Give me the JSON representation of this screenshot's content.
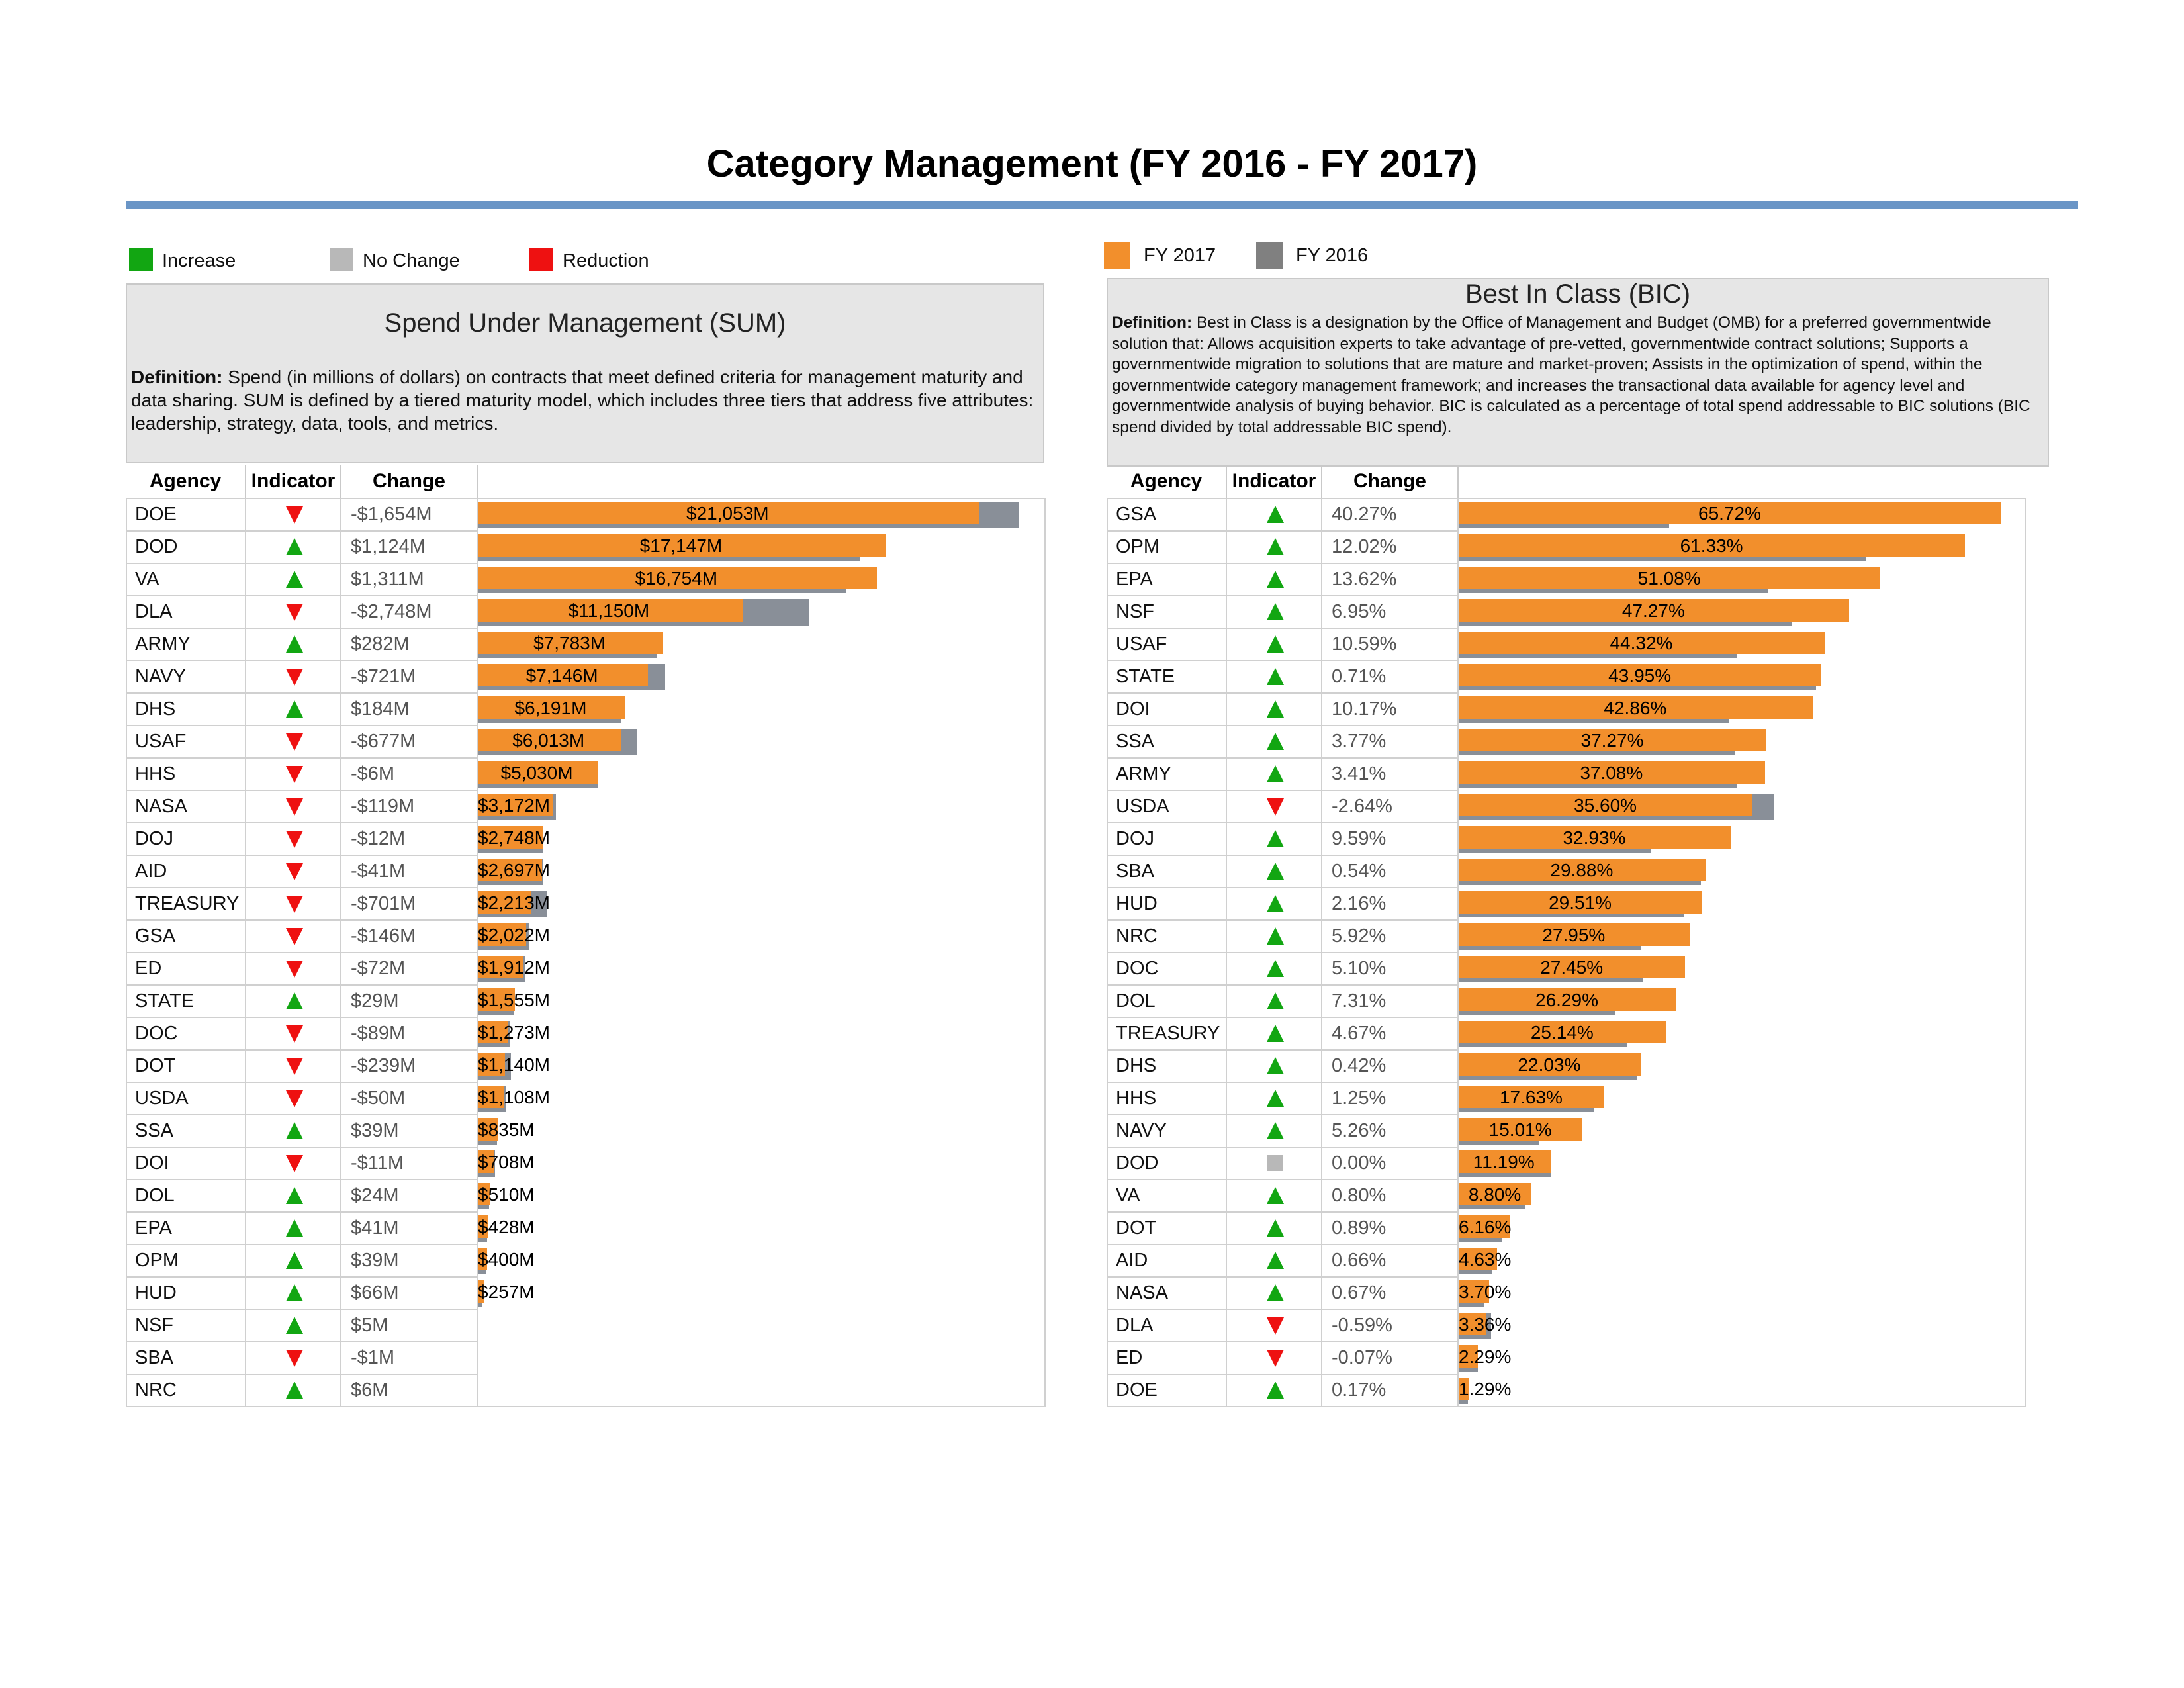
{
  "title": "Category Management (FY 2016 - FY 2017)",
  "legend_indicator": [
    {
      "label": "Increase",
      "color": "#12a612"
    },
    {
      "label": "No Change",
      "color": "#b8b8b8"
    },
    {
      "label": "Reduction",
      "color": "#ee1111"
    }
  ],
  "legend_years": [
    {
      "label": "FY 2017",
      "color": "#f28f2c"
    },
    {
      "label": "FY 2016",
      "color": "#808080"
    }
  ],
  "sum_panel": {
    "heading": "Spend Under Management (SUM)",
    "definition_label": "Definition:",
    "definition": "Spend (in millions of dollars) on contracts that meet defined criteria for management maturity and data sharing. SUM is defined by a tiered maturity model, which includes three tiers that address five attributes: leadership, strategy, data, tools, and metrics.",
    "columns": [
      "Agency",
      "Indicator",
      "Change"
    ]
  },
  "bic_panel": {
    "heading": "Best In Class (BIC)",
    "definition_label": "Definition:",
    "definition": "Best in Class is a designation by the Office of Management and Budget (OMB) for a preferred governmentwide solution that: Allows acquisition experts to take advantage of pre-vetted, governmentwide contract solutions; Supports a governmentwide migration to solutions that are mature and market-proven; Assists in the optimization of spend, within the governmentwide category management framework; and increases the transactional data available for agency level and governmentwide analysis of buying behavior. BIC is calculated as a percentage of total spend addressable to BIC solutions (BIC spend divided by total addressable BIC spend).",
    "columns": [
      "Agency",
      "Indicator",
      "Change"
    ]
  },
  "chart_data": [
    {
      "type": "bar",
      "title": "Spend Under Management (SUM)",
      "unit": "millions of dollars",
      "series": [
        {
          "name": "FY 2017"
        },
        {
          "name": "FY 2016"
        }
      ],
      "rows": [
        {
          "agency": "DOE",
          "indicator": "reduction",
          "change": "-$1,654M",
          "fy2017": 21053,
          "fy2016": 22707,
          "label": "$21,053M"
        },
        {
          "agency": "DOD",
          "indicator": "increase",
          "change": "$1,124M",
          "fy2017": 17147,
          "fy2016": 16023,
          "label": "$17,147M"
        },
        {
          "agency": "VA",
          "indicator": "increase",
          "change": "$1,311M",
          "fy2017": 16754,
          "fy2016": 15443,
          "label": "$16,754M"
        },
        {
          "agency": "DLA",
          "indicator": "reduction",
          "change": "-$2,748M",
          "fy2017": 11150,
          "fy2016": 13898,
          "label": "$11,150M"
        },
        {
          "agency": "ARMY",
          "indicator": "increase",
          "change": "$282M",
          "fy2017": 7783,
          "fy2016": 7501,
          "label": "$7,783M"
        },
        {
          "agency": "NAVY",
          "indicator": "reduction",
          "change": "-$721M",
          "fy2017": 7146,
          "fy2016": 7867,
          "label": "$7,146M"
        },
        {
          "agency": "DHS",
          "indicator": "increase",
          "change": "$184M",
          "fy2017": 6191,
          "fy2016": 6007,
          "label": "$6,191M"
        },
        {
          "agency": "USAF",
          "indicator": "reduction",
          "change": "-$677M",
          "fy2017": 6013,
          "fy2016": 6690,
          "label": "$6,013M"
        },
        {
          "agency": "HHS",
          "indicator": "reduction",
          "change": "-$6M",
          "fy2017": 5030,
          "fy2016": 5036,
          "label": "$5,030M"
        },
        {
          "agency": "NASA",
          "indicator": "reduction",
          "change": "-$119M",
          "fy2017": 3172,
          "fy2016": 3291,
          "label": "$3,172M"
        },
        {
          "agency": "DOJ",
          "indicator": "reduction",
          "change": "-$12M",
          "fy2017": 2748,
          "fy2016": 2760,
          "label": "$2,748M"
        },
        {
          "agency": "AID",
          "indicator": "reduction",
          "change": "-$41M",
          "fy2017": 2697,
          "fy2016": 2738,
          "label": "$2,697M"
        },
        {
          "agency": "TREASURY",
          "indicator": "reduction",
          "change": "-$701M",
          "fy2017": 2213,
          "fy2016": 2914,
          "label": "$2,213M"
        },
        {
          "agency": "GSA",
          "indicator": "reduction",
          "change": "-$146M",
          "fy2017": 2022,
          "fy2016": 2168,
          "label": "$2,022M"
        },
        {
          "agency": "ED",
          "indicator": "reduction",
          "change": "-$72M",
          "fy2017": 1912,
          "fy2016": 1984,
          "label": "$1,912M"
        },
        {
          "agency": "STATE",
          "indicator": "increase",
          "change": "$29M",
          "fy2017": 1555,
          "fy2016": 1526,
          "label": "$1,555M"
        },
        {
          "agency": "DOC",
          "indicator": "reduction",
          "change": "-$89M",
          "fy2017": 1273,
          "fy2016": 1362,
          "label": "$1,273M"
        },
        {
          "agency": "DOT",
          "indicator": "reduction",
          "change": "-$239M",
          "fy2017": 1140,
          "fy2016": 1379,
          "label": "$1,140M"
        },
        {
          "agency": "USDA",
          "indicator": "reduction",
          "change": "-$50M",
          "fy2017": 1108,
          "fy2016": 1158,
          "label": "$1,108M"
        },
        {
          "agency": "SSA",
          "indicator": "increase",
          "change": "$39M",
          "fy2017": 835,
          "fy2016": 796,
          "label": "$835M"
        },
        {
          "agency": "DOI",
          "indicator": "reduction",
          "change": "-$11M",
          "fy2017": 708,
          "fy2016": 719,
          "label": "$708M"
        },
        {
          "agency": "DOL",
          "indicator": "increase",
          "change": "$24M",
          "fy2017": 510,
          "fy2016": 486,
          "label": "$510M"
        },
        {
          "agency": "EPA",
          "indicator": "increase",
          "change": "$41M",
          "fy2017": 428,
          "fy2016": 387,
          "label": "$428M"
        },
        {
          "agency": "OPM",
          "indicator": "increase",
          "change": "$39M",
          "fy2017": 400,
          "fy2016": 361,
          "label": "$400M"
        },
        {
          "agency": "HUD",
          "indicator": "increase",
          "change": "$66M",
          "fy2017": 257,
          "fy2016": 191,
          "label": "$257M"
        },
        {
          "agency": "NSF",
          "indicator": "increase",
          "change": "$5M",
          "fy2017": 10,
          "fy2016": 5,
          "label": ""
        },
        {
          "agency": "SBA",
          "indicator": "reduction",
          "change": "-$1M",
          "fy2017": 8,
          "fy2016": 9,
          "label": ""
        },
        {
          "agency": "NRC",
          "indicator": "increase",
          "change": "$6M",
          "fy2017": 9,
          "fy2016": 3,
          "label": ""
        }
      ]
    },
    {
      "type": "bar",
      "title": "Best In Class (BIC)",
      "unit": "percent",
      "series": [
        {
          "name": "FY 2017"
        },
        {
          "name": "FY 2016"
        }
      ],
      "rows": [
        {
          "agency": "GSA",
          "indicator": "increase",
          "change": "40.27%",
          "fy2017": 65.72,
          "fy2016": 25.45,
          "label": "65.72%"
        },
        {
          "agency": "OPM",
          "indicator": "increase",
          "change": "12.02%",
          "fy2017": 61.33,
          "fy2016": 49.31,
          "label": "61.33%"
        },
        {
          "agency": "EPA",
          "indicator": "increase",
          "change": "13.62%",
          "fy2017": 51.08,
          "fy2016": 37.46,
          "label": "51.08%"
        },
        {
          "agency": "NSF",
          "indicator": "increase",
          "change": "6.95%",
          "fy2017": 47.27,
          "fy2016": 40.32,
          "label": "47.27%"
        },
        {
          "agency": "USAF",
          "indicator": "increase",
          "change": "10.59%",
          "fy2017": 44.32,
          "fy2016": 33.73,
          "label": "44.32%"
        },
        {
          "agency": "STATE",
          "indicator": "increase",
          "change": "0.71%",
          "fy2017": 43.95,
          "fy2016": 43.24,
          "label": "43.95%"
        },
        {
          "agency": "DOI",
          "indicator": "increase",
          "change": "10.17%",
          "fy2017": 42.86,
          "fy2016": 32.69,
          "label": "42.86%"
        },
        {
          "agency": "SSA",
          "indicator": "increase",
          "change": "3.77%",
          "fy2017": 37.27,
          "fy2016": 33.5,
          "label": "37.27%"
        },
        {
          "agency": "ARMY",
          "indicator": "increase",
          "change": "3.41%",
          "fy2017": 37.08,
          "fy2016": 33.67,
          "label": "37.08%"
        },
        {
          "agency": "USDA",
          "indicator": "reduction",
          "change": "-2.64%",
          "fy2017": 35.6,
          "fy2016": 38.24,
          "label": "35.60%"
        },
        {
          "agency": "DOJ",
          "indicator": "increase",
          "change": "9.59%",
          "fy2017": 32.93,
          "fy2016": 23.34,
          "label": "32.93%"
        },
        {
          "agency": "SBA",
          "indicator": "increase",
          "change": "0.54%",
          "fy2017": 29.88,
          "fy2016": 29.34,
          "label": "29.88%"
        },
        {
          "agency": "HUD",
          "indicator": "increase",
          "change": "2.16%",
          "fy2017": 29.51,
          "fy2016": 27.35,
          "label": "29.51%"
        },
        {
          "agency": "NRC",
          "indicator": "increase",
          "change": "5.92%",
          "fy2017": 27.95,
          "fy2016": 22.03,
          "label": "27.95%"
        },
        {
          "agency": "DOC",
          "indicator": "increase",
          "change": "5.10%",
          "fy2017": 27.45,
          "fy2016": 22.35,
          "label": "27.45%"
        },
        {
          "agency": "DOL",
          "indicator": "increase",
          "change": "7.31%",
          "fy2017": 26.29,
          "fy2016": 18.98,
          "label": "26.29%"
        },
        {
          "agency": "TREASURY",
          "indicator": "increase",
          "change": "4.67%",
          "fy2017": 25.14,
          "fy2016": 20.47,
          "label": "25.14%"
        },
        {
          "agency": "DHS",
          "indicator": "increase",
          "change": "0.42%",
          "fy2017": 22.03,
          "fy2016": 21.61,
          "label": "22.03%"
        },
        {
          "agency": "HHS",
          "indicator": "increase",
          "change": "1.25%",
          "fy2017": 17.63,
          "fy2016": 16.38,
          "label": "17.63%"
        },
        {
          "agency": "NAVY",
          "indicator": "increase",
          "change": "5.26%",
          "fy2017": 15.01,
          "fy2016": 9.75,
          "label": "15.01%"
        },
        {
          "agency": "DOD",
          "indicator": "nochange",
          "change": "0.00%",
          "fy2017": 11.19,
          "fy2016": 11.19,
          "label": "11.19%"
        },
        {
          "agency": "VA",
          "indicator": "increase",
          "change": "0.80%",
          "fy2017": 8.8,
          "fy2016": 8.0,
          "label": "8.80%"
        },
        {
          "agency": "DOT",
          "indicator": "increase",
          "change": "0.89%",
          "fy2017": 6.16,
          "fy2016": 5.27,
          "label": "6.16%"
        },
        {
          "agency": "AID",
          "indicator": "increase",
          "change": "0.66%",
          "fy2017": 4.63,
          "fy2016": 3.97,
          "label": "4.63%"
        },
        {
          "agency": "NASA",
          "indicator": "increase",
          "change": "0.67%",
          "fy2017": 3.7,
          "fy2016": 3.03,
          "label": "3.70%"
        },
        {
          "agency": "DLA",
          "indicator": "reduction",
          "change": "-0.59%",
          "fy2017": 3.36,
          "fy2016": 3.95,
          "label": "3.36%"
        },
        {
          "agency": "ED",
          "indicator": "reduction",
          "change": "-0.07%",
          "fy2017": 2.29,
          "fy2016": 2.36,
          "label": "2.29%"
        },
        {
          "agency": "DOE",
          "indicator": "increase",
          "change": "0.17%",
          "fy2017": 1.29,
          "fy2016": 1.12,
          "label": "1.29%"
        }
      ]
    }
  ]
}
